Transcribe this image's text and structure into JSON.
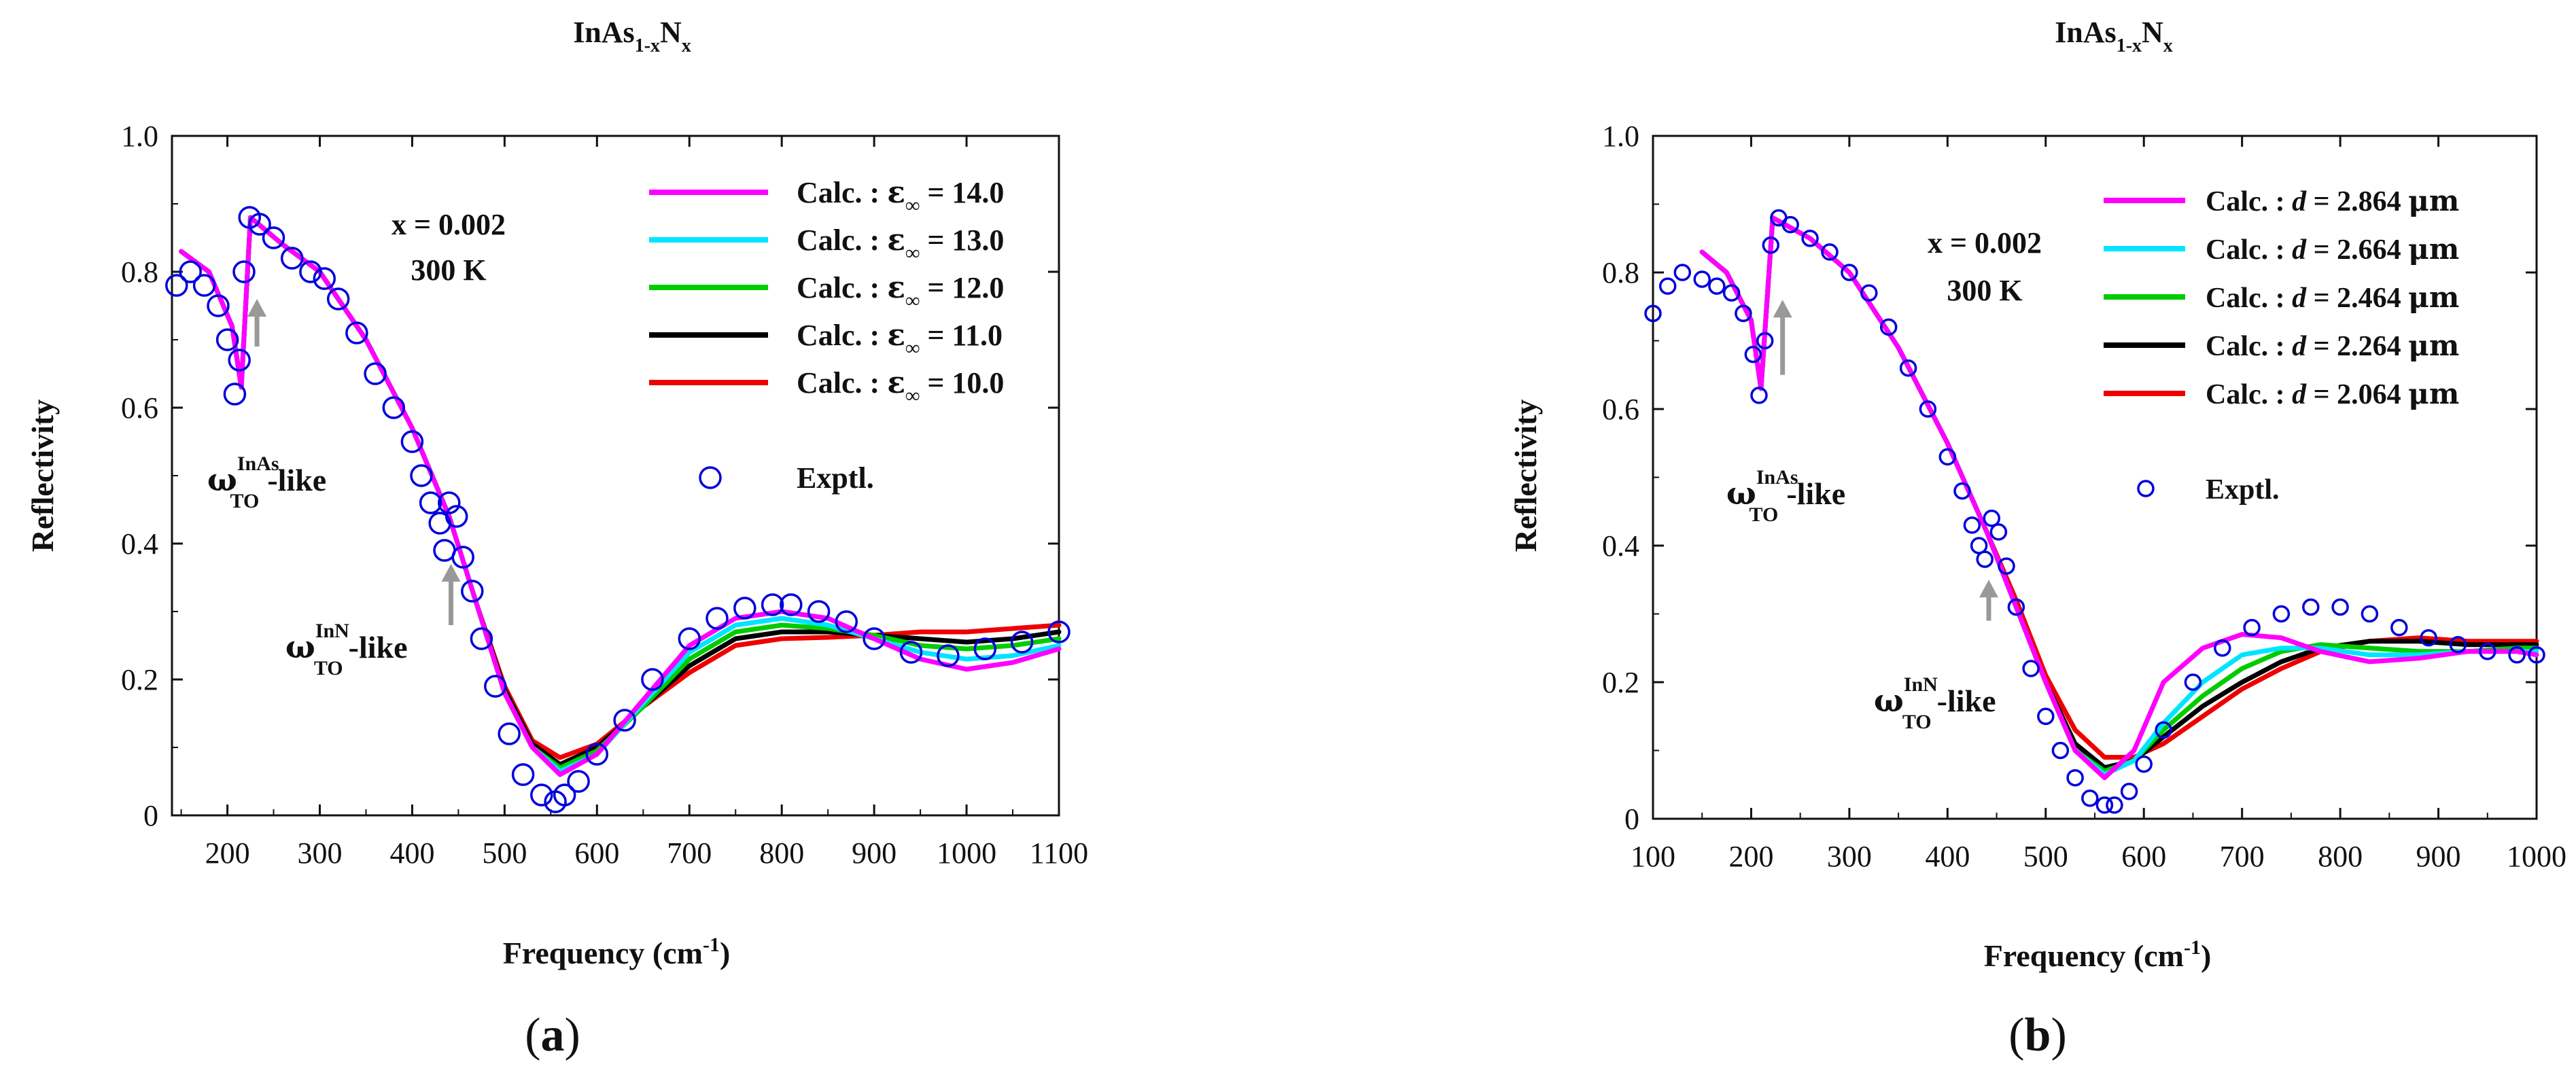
{
  "panels": [
    {
      "tag": "a",
      "title": {
        "main": "InAs",
        "sub1": "1-x",
        "mid": "N",
        "sub2": "x"
      },
      "label": {
        "open": "(",
        "letter": "a",
        "close": ")"
      },
      "composition": "x = 0.002",
      "temperature": "300 K",
      "annot_inas": {
        "w": "ω",
        "sup": "InAs",
        "sub": "TO",
        "tail": "-like"
      },
      "annot_inn": {
        "w": "ω",
        "sup": "InN",
        "sub": "TO",
        "tail": "-like"
      },
      "legend_series": [
        {
          "prefix": "Calc. : ",
          "sym": "ε",
          "sub": "∞",
          "val": " = 14.0"
        },
        {
          "prefix": "Calc. : ",
          "sym": "ε",
          "sub": "∞",
          "val": " = 13.0"
        },
        {
          "prefix": "Calc. : ",
          "sym": "ε",
          "sub": "∞",
          "val": " = 12.0"
        },
        {
          "prefix": "Calc. : ",
          "sym": "ε",
          "sub": "∞",
          "val": " = 11.0"
        },
        {
          "prefix": "Calc. : ",
          "sym": "ε",
          "sub": "∞",
          "val": " = 10.0"
        }
      ],
      "legend_exptl": "Exptl."
    },
    {
      "tag": "b",
      "title": {
        "main": "InAs",
        "sub1": "1-x",
        "mid": "N",
        "sub2": "x"
      },
      "label": {
        "open": "(",
        "letter": "b",
        "close": ")"
      },
      "composition": "x = 0.002",
      "temperature": "300 K",
      "annot_inas": {
        "w": "ω",
        "sup": "InAs",
        "sub": "TO",
        "tail": "-like"
      },
      "annot_inn": {
        "w": "ω",
        "sup": "InN",
        "sub": "TO",
        "tail": "-like"
      },
      "legend_series": [
        {
          "prefix": "Calc. : ",
          "sym": "d",
          "val": " = 2.864 ",
          "unit": "μm"
        },
        {
          "prefix": "Calc. : ",
          "sym": "d",
          "val": " = 2.664 ",
          "unit": "μm"
        },
        {
          "prefix": "Calc. : ",
          "sym": "d",
          "val": " = 2.464 ",
          "unit": "μm"
        },
        {
          "prefix": "Calc. : ",
          "sym": "d",
          "val": " = 2.264 ",
          "unit": "μm"
        },
        {
          "prefix": "Calc. : ",
          "sym": "d",
          "val": " = 2.064 ",
          "unit": "μm"
        }
      ],
      "legend_exptl": "Exptl."
    }
  ],
  "chart_data": [
    {
      "type": "line",
      "title": "InAs1-xNx",
      "xlabel": "Frequency (cm-1)",
      "ylabel": "Reflectivity",
      "xlim": [
        140,
        1100
      ],
      "ylim": [
        0,
        1.0
      ],
      "xticks": [
        200,
        300,
        400,
        500,
        600,
        700,
        800,
        900,
        1000,
        1100
      ],
      "yticks": [
        0,
        0.2,
        0.4,
        0.6,
        0.8,
        1.0
      ],
      "series": [
        {
          "name": "Calc. : ε∞ = 14.0",
          "color": "#ff00ff",
          "x": [
            150,
            180,
            205,
            215,
            225,
            260,
            300,
            350,
            400,
            440,
            470,
            500,
            530,
            560,
            600,
            650,
            700,
            750,
            800,
            850,
            900,
            950,
            1000,
            1050,
            1100
          ],
          "y": [
            0.83,
            0.8,
            0.72,
            0.63,
            0.88,
            0.84,
            0.8,
            0.7,
            0.57,
            0.44,
            0.31,
            0.18,
            0.1,
            0.06,
            0.09,
            0.17,
            0.25,
            0.29,
            0.3,
            0.29,
            0.26,
            0.23,
            0.215,
            0.225,
            0.245
          ]
        },
        {
          "name": "Calc. : ε∞ = 13.0",
          "color": "#00e5ff",
          "x": [
            150,
            180,
            205,
            215,
            225,
            260,
            300,
            350,
            400,
            440,
            470,
            500,
            530,
            560,
            600,
            650,
            700,
            750,
            800,
            850,
            900,
            950,
            1000,
            1050,
            1100
          ],
          "y": [
            0.83,
            0.8,
            0.72,
            0.63,
            0.88,
            0.84,
            0.8,
            0.7,
            0.57,
            0.44,
            0.31,
            0.18,
            0.1,
            0.065,
            0.09,
            0.165,
            0.24,
            0.28,
            0.29,
            0.28,
            0.26,
            0.24,
            0.23,
            0.235,
            0.25
          ]
        },
        {
          "name": "Calc. : ε∞ = 12.0",
          "color": "#00cc00",
          "x": [
            150,
            180,
            205,
            215,
            225,
            260,
            300,
            350,
            400,
            440,
            470,
            500,
            530,
            560,
            600,
            650,
            700,
            750,
            800,
            850,
            900,
            950,
            1000,
            1050,
            1100
          ],
          "y": [
            0.83,
            0.8,
            0.72,
            0.63,
            0.88,
            0.84,
            0.8,
            0.7,
            0.57,
            0.44,
            0.31,
            0.18,
            0.1,
            0.07,
            0.095,
            0.16,
            0.23,
            0.27,
            0.28,
            0.275,
            0.265,
            0.25,
            0.245,
            0.25,
            0.26
          ]
        },
        {
          "name": "Calc. : ε∞ = 11.0",
          "color": "#000000",
          "x": [
            150,
            180,
            205,
            215,
            225,
            260,
            300,
            350,
            400,
            440,
            470,
            500,
            530,
            560,
            600,
            650,
            700,
            750,
            800,
            850,
            900,
            950,
            1000,
            1050,
            1100
          ],
          "y": [
            0.83,
            0.8,
            0.72,
            0.63,
            0.88,
            0.84,
            0.8,
            0.7,
            0.57,
            0.44,
            0.31,
            0.185,
            0.105,
            0.075,
            0.1,
            0.16,
            0.22,
            0.26,
            0.27,
            0.27,
            0.265,
            0.26,
            0.255,
            0.26,
            0.27
          ]
        },
        {
          "name": "Calc. : ε∞ = 10.0",
          "color": "#ee0000",
          "x": [
            150,
            180,
            205,
            215,
            225,
            260,
            300,
            350,
            400,
            440,
            470,
            500,
            530,
            560,
            600,
            650,
            700,
            750,
            800,
            850,
            900,
            950,
            1000,
            1050,
            1100
          ],
          "y": [
            0.83,
            0.8,
            0.72,
            0.63,
            0.88,
            0.84,
            0.8,
            0.7,
            0.57,
            0.44,
            0.31,
            0.19,
            0.11,
            0.085,
            0.105,
            0.16,
            0.21,
            0.25,
            0.26,
            0.262,
            0.265,
            0.27,
            0.27,
            0.275,
            0.28
          ]
        },
        {
          "name": "Exptl.",
          "color": "#0000dd",
          "marker": "circle",
          "x": [
            145,
            160,
            175,
            190,
            200,
            208,
            213,
            218,
            224,
            235,
            250,
            270,
            290,
            305,
            320,
            340,
            360,
            380,
            400,
            410,
            420,
            430,
            435,
            440,
            448,
            455,
            465,
            475,
            490,
            505,
            520,
            540,
            555,
            565,
            580,
            600,
            630,
            660,
            700,
            730,
            760,
            790,
            810,
            840,
            870,
            900,
            940,
            980,
            1020,
            1060,
            1100
          ],
          "y": [
            0.78,
            0.8,
            0.78,
            0.75,
            0.7,
            0.62,
            0.67,
            0.8,
            0.88,
            0.87,
            0.85,
            0.82,
            0.8,
            0.79,
            0.76,
            0.71,
            0.65,
            0.6,
            0.55,
            0.5,
            0.46,
            0.43,
            0.39,
            0.46,
            0.44,
            0.38,
            0.33,
            0.26,
            0.19,
            0.12,
            0.06,
            0.03,
            0.02,
            0.03,
            0.05,
            0.09,
            0.14,
            0.2,
            0.26,
            0.29,
            0.305,
            0.31,
            0.31,
            0.3,
            0.285,
            0.26,
            0.24,
            0.235,
            0.245,
            0.255,
            0.27
          ]
        }
      ],
      "arrows": [
        {
          "x": 232,
          "y_from": 0.69,
          "y_to": 0.76
        },
        {
          "x": 442,
          "y_from": 0.28,
          "y_to": 0.37
        }
      ]
    },
    {
      "type": "line",
      "title": "InAs1-xNx",
      "xlabel": "Frequency (cm-1)",
      "ylabel": "Reflectivity",
      "xlim": [
        100,
        1000
      ],
      "ylim": [
        0,
        1.0
      ],
      "xticks": [
        100,
        200,
        300,
        400,
        500,
        600,
        700,
        800,
        900,
        1000
      ],
      "yticks": [
        0,
        0.2,
        0.4,
        0.6,
        0.8,
        1.0
      ],
      "series": [
        {
          "name": "Calc. : d = 2.864 μm",
          "color": "#ff00ff",
          "x": [
            150,
            175,
            200,
            210,
            222,
            260,
            300,
            350,
            400,
            440,
            470,
            500,
            530,
            560,
            590,
            620,
            660,
            700,
            740,
            780,
            830,
            880,
            930,
            980,
            1000
          ],
          "y": [
            0.83,
            0.8,
            0.73,
            0.63,
            0.88,
            0.85,
            0.8,
            0.69,
            0.55,
            0.42,
            0.31,
            0.2,
            0.1,
            0.06,
            0.1,
            0.2,
            0.25,
            0.27,
            0.265,
            0.245,
            0.23,
            0.235,
            0.245,
            0.245,
            0.24
          ]
        },
        {
          "name": "Calc. : d = 2.664 μm",
          "color": "#00e5ff",
          "x": [
            150,
            175,
            200,
            210,
            222,
            260,
            300,
            350,
            400,
            440,
            470,
            500,
            530,
            560,
            590,
            620,
            660,
            700,
            740,
            780,
            830,
            880,
            930,
            980,
            1000
          ],
          "y": [
            0.83,
            0.8,
            0.73,
            0.63,
            0.88,
            0.85,
            0.8,
            0.69,
            0.55,
            0.42,
            0.31,
            0.2,
            0.1,
            0.065,
            0.085,
            0.14,
            0.2,
            0.24,
            0.25,
            0.25,
            0.24,
            0.24,
            0.245,
            0.245,
            0.245
          ]
        },
        {
          "name": "Calc. : d = 2.464 μm",
          "color": "#00cc00",
          "x": [
            150,
            175,
            200,
            210,
            222,
            260,
            300,
            350,
            400,
            440,
            470,
            500,
            530,
            560,
            590,
            620,
            660,
            700,
            740,
            780,
            830,
            880,
            930,
            980,
            1000
          ],
          "y": [
            0.83,
            0.8,
            0.73,
            0.63,
            0.88,
            0.85,
            0.8,
            0.69,
            0.55,
            0.42,
            0.31,
            0.2,
            0.1,
            0.07,
            0.085,
            0.13,
            0.18,
            0.22,
            0.245,
            0.255,
            0.25,
            0.245,
            0.245,
            0.25,
            0.25
          ]
        },
        {
          "name": "Calc. : d = 2.264 μm",
          "color": "#000000",
          "x": [
            150,
            175,
            200,
            210,
            222,
            260,
            300,
            350,
            400,
            440,
            470,
            500,
            530,
            560,
            590,
            620,
            660,
            700,
            740,
            780,
            830,
            880,
            930,
            980,
            1000
          ],
          "y": [
            0.83,
            0.8,
            0.73,
            0.63,
            0.88,
            0.85,
            0.8,
            0.69,
            0.55,
            0.42,
            0.31,
            0.2,
            0.11,
            0.075,
            0.085,
            0.12,
            0.165,
            0.2,
            0.23,
            0.25,
            0.26,
            0.26,
            0.255,
            0.255,
            0.255
          ]
        },
        {
          "name": "Calc. : d = 2.064 μm",
          "color": "#ee0000",
          "x": [
            150,
            175,
            200,
            210,
            222,
            260,
            300,
            350,
            400,
            440,
            470,
            500,
            530,
            560,
            590,
            620,
            660,
            700,
            740,
            780,
            830,
            880,
            930,
            980,
            1000
          ],
          "y": [
            0.83,
            0.8,
            0.73,
            0.63,
            0.88,
            0.85,
            0.8,
            0.69,
            0.55,
            0.42,
            0.32,
            0.21,
            0.13,
            0.09,
            0.09,
            0.11,
            0.15,
            0.19,
            0.22,
            0.245,
            0.26,
            0.265,
            0.26,
            0.26,
            0.26
          ]
        },
        {
          "name": "Exptl.",
          "color": "#0000dd",
          "marker": "circle",
          "x": [
            100,
            115,
            130,
            150,
            165,
            180,
            192,
            202,
            208,
            214,
            220,
            228,
            240,
            260,
            280,
            300,
            320,
            340,
            360,
            380,
            400,
            415,
            425,
            432,
            438,
            445,
            452,
            460,
            470,
            485,
            500,
            515,
            530,
            545,
            560,
            570,
            585,
            600,
            620,
            650,
            680,
            710,
            740,
            770,
            800,
            830,
            860,
            890,
            920,
            950,
            980,
            1000
          ],
          "y": [
            0.74,
            0.78,
            0.8,
            0.79,
            0.78,
            0.77,
            0.74,
            0.68,
            0.62,
            0.7,
            0.84,
            0.88,
            0.87,
            0.85,
            0.83,
            0.8,
            0.77,
            0.72,
            0.66,
            0.6,
            0.53,
            0.48,
            0.43,
            0.4,
            0.38,
            0.44,
            0.42,
            0.37,
            0.31,
            0.22,
            0.15,
            0.1,
            0.06,
            0.03,
            0.02,
            0.02,
            0.04,
            0.08,
            0.13,
            0.2,
            0.25,
            0.28,
            0.3,
            0.31,
            0.31,
            0.3,
            0.28,
            0.265,
            0.255,
            0.245,
            0.24,
            0.24
          ]
        }
      ],
      "arrows": [
        {
          "x": 232,
          "y_from": 0.65,
          "y_to": 0.76
        },
        {
          "x": 442,
          "y_from": 0.29,
          "y_to": 0.35
        }
      ]
    }
  ]
}
